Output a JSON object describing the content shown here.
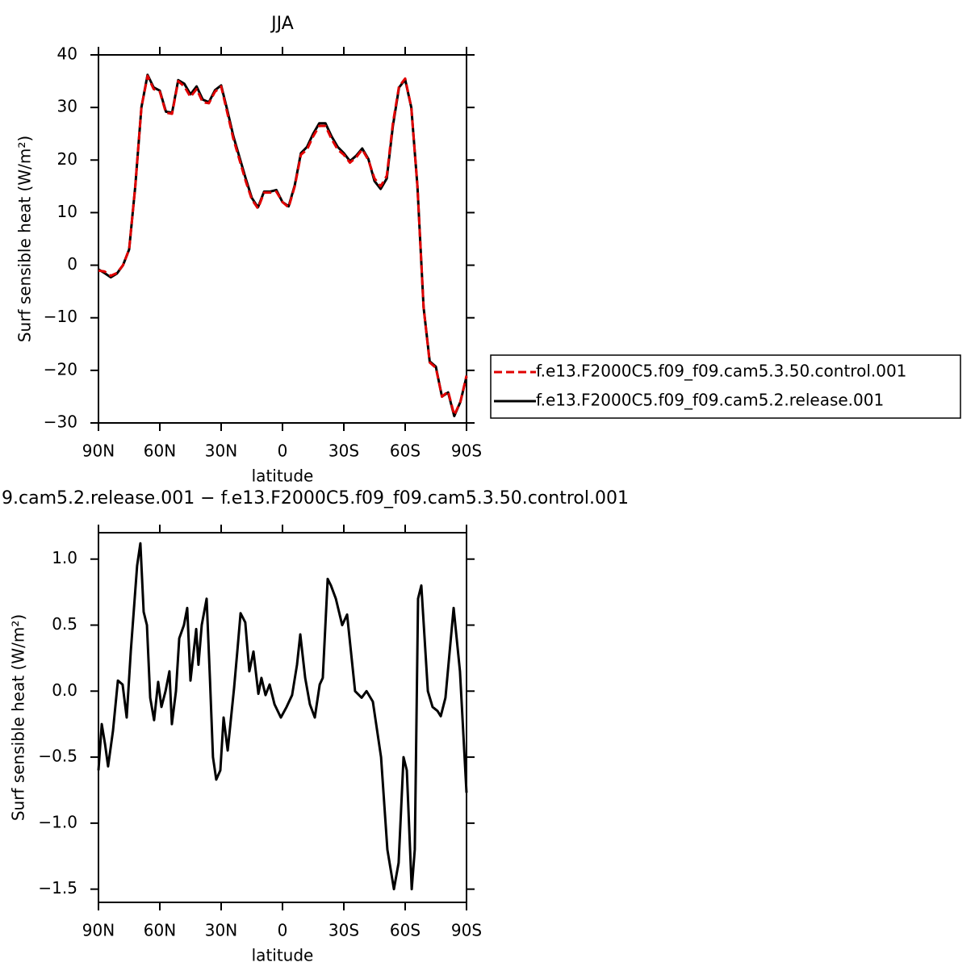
{
  "chart_data": [
    {
      "type": "line",
      "title": "JJA",
      "xlabel": "latitude",
      "ylabel": "Surf sensible heat (W/m²)",
      "xlim": [
        90,
        -90
      ],
      "ylim": [
        -30,
        40
      ],
      "xticks": [
        {
          "value": 90,
          "label": "90N"
        },
        {
          "value": 60,
          "label": "60N"
        },
        {
          "value": 30,
          "label": "30N"
        },
        0,
        {
          "value": -30,
          "label": "30S"
        },
        {
          "value": -60,
          "label": "60S"
        },
        {
          "value": -90,
          "label": "90S"
        }
      ],
      "yticks": [
        {
          "value": -30,
          "label": "−30"
        },
        {
          "value": -20,
          "label": "−20"
        },
        {
          "value": -10,
          "label": "−10"
        },
        0,
        10,
        20,
        30,
        40
      ],
      "legend": "outside-right",
      "x": [
        90,
        87,
        84,
        81,
        78,
        75,
        72,
        69,
        66,
        63,
        60,
        57,
        54,
        51,
        48,
        45,
        42,
        39,
        36,
        33,
        30,
        27,
        24,
        21,
        18,
        15,
        12,
        9,
        6,
        3,
        0,
        -3,
        -6,
        -9,
        -12,
        -15,
        -18,
        -21,
        -24,
        -27,
        -30,
        -33,
        -36,
        -39,
        -42,
        -45,
        -48,
        -51,
        -54,
        -57,
        -60,
        -63,
        -66,
        -69,
        -72,
        -75,
        -78,
        -81,
        -84,
        -87,
        -90
      ],
      "series": [
        {
          "name": "f.e13.F2000C5.f09_f09.cam5.3.50.control.001",
          "color": "#e00000",
          "style": "dashed",
          "values": [
            -1,
            -1.2,
            -2,
            -1.5,
            0,
            3,
            15,
            30,
            36,
            33.5,
            33,
            29,
            28.8,
            35,
            34,
            32,
            33.5,
            31,
            30.8,
            33,
            34,
            29,
            24,
            20,
            16,
            12.5,
            10.8,
            13.8,
            13.8,
            14,
            12,
            11,
            15,
            21,
            22,
            24.5,
            26.5,
            26.5,
            24,
            22,
            21,
            19.5,
            20.5,
            22,
            20,
            16.5,
            15,
            17,
            27,
            34,
            35.5,
            30,
            15,
            -8,
            -18.5,
            -19.5,
            -25,
            -24,
            -28.5,
            -26,
            -21
          ]
        },
        {
          "name": "f.e13.F2000C5.f09_f09.cam5.2.release.001",
          "color": "#000000",
          "style": "solid",
          "values": [
            -0.8,
            -1.5,
            -2.3,
            -1.6,
            0,
            3,
            15,
            30,
            36.2,
            33.8,
            33.2,
            29.2,
            29,
            35.2,
            34.5,
            32.5,
            34,
            31.5,
            31,
            33.3,
            34.2,
            29.5,
            24.5,
            20.5,
            16.5,
            12.8,
            11,
            14,
            14,
            14.3,
            12,
            11.2,
            15.2,
            21.3,
            22.5,
            25,
            27,
            27,
            24.5,
            22.5,
            21.3,
            19.8,
            20.8,
            22.2,
            20.2,
            16,
            14.5,
            16.5,
            26.5,
            33.8,
            35.3,
            30,
            15,
            -8,
            -18.3,
            -19.3,
            -25,
            -24.2,
            -28.7,
            -26,
            -21.2
          ]
        }
      ]
    },
    {
      "type": "line",
      "title": "9.cam5.2.release.001 − f.e13.F2000C5.f09_f09.cam5.3.50.control.001",
      "xlabel": "latitude",
      "ylabel": "Surf sensible heat (W/m²)",
      "xlim": [
        90,
        -90
      ],
      "ylim": [
        -1.6,
        1.2
      ],
      "xticks": [
        {
          "value": 90,
          "label": "90N"
        },
        {
          "value": 60,
          "label": "60N"
        },
        {
          "value": 30,
          "label": "30N"
        },
        0,
        {
          "value": -30,
          "label": "30S"
        },
        {
          "value": -60,
          "label": "60S"
        },
        {
          "value": -90,
          "label": "90S"
        }
      ],
      "yticks": [
        {
          "value": -1.5,
          "label": "−1.5"
        },
        {
          "value": -1,
          "label": "−1.0"
        },
        {
          "value": -0.5,
          "label": "−0.5"
        },
        {
          "value": 0,
          "label": "0.0"
        },
        {
          "value": 0.5,
          "label": "0.5"
        },
        {
          "value": 1,
          "label": "1.0"
        }
      ],
      "color": "#000000",
      "x": [
        90,
        88.4,
        86.8,
        85.3,
        82.9,
        80.5,
        78.2,
        76.2,
        74.2,
        71.1,
        69.5,
        67.9,
        66.3,
        64.7,
        62.8,
        60.8,
        59.2,
        57.2,
        55.3,
        54.1,
        52.1,
        50.5,
        48.2,
        46.6,
        45,
        42.2,
        41.1,
        39.5,
        37.1,
        35.5,
        34,
        32.4,
        30.4,
        28.8,
        26.8,
        23.7,
        22.1,
        20.5,
        18.2,
        16.2,
        14.2,
        11.8,
        10.3,
        8.3,
        6.3,
        3.9,
        0.8,
        -2,
        -4.7,
        -7.1,
        -8.7,
        -11.1,
        -13.4,
        -15.8,
        -18.2,
        -19.7,
        -22.1,
        -23.7,
        -26.1,
        -29.2,
        -31.6,
        -35.5,
        -38.7,
        -41.1,
        -44.2,
        -48.2,
        -51.3,
        -54.5,
        -56.8,
        -59.2,
        -60.8,
        -63.2,
        -64.7,
        -66.3,
        -67.9,
        -71.1,
        -73.4,
        -75.8,
        -77.4,
        -79.7,
        -83.7,
        -86.8,
        -90
      ],
      "values": [
        -0.6,
        -0.25,
        -0.4,
        -0.57,
        -0.3,
        0.08,
        0.05,
        -0.2,
        0.3,
        0.95,
        1.12,
        0.6,
        0.5,
        -0.05,
        -0.22,
        0.07,
        -0.12,
        0,
        0.15,
        -0.25,
        0,
        0.4,
        0.5,
        0.63,
        0.08,
        0.47,
        0.2,
        0.5,
        0.7,
        0.1,
        -0.5,
        -0.67,
        -0.6,
        -0.2,
        -0.45,
        0.02,
        0.3,
        0.59,
        0.52,
        0.15,
        0.3,
        -0.02,
        0.1,
        -0.03,
        0.05,
        -0.1,
        -0.2,
        -0.12,
        -0.03,
        0.2,
        0.43,
        0.1,
        -0.1,
        -0.2,
        0.05,
        0.1,
        0.85,
        0.8,
        0.7,
        0.5,
        0.58,
        0,
        -0.05,
        0,
        -0.08,
        -0.5,
        -1.2,
        -1.5,
        -1.3,
        -0.5,
        -0.6,
        -1.5,
        -1.2,
        0.7,
        0.8,
        0,
        -0.12,
        -0.15,
        -0.19,
        -0.05,
        0.63,
        0.15,
        -0.77
      ]
    }
  ]
}
